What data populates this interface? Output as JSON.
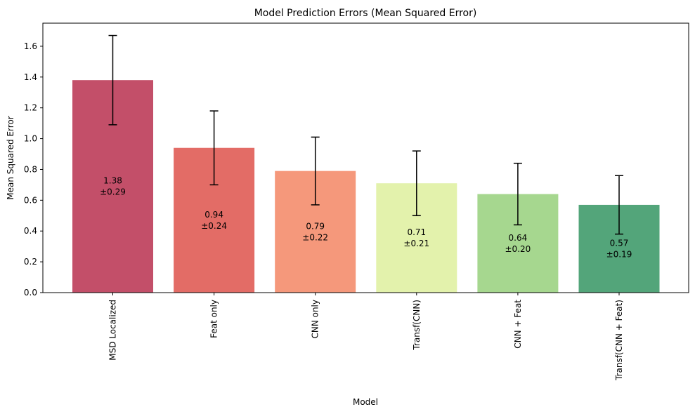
{
  "chart_data": {
    "type": "bar",
    "title": "Model Prediction Errors (Mean Squared Error)",
    "xlabel": "Model",
    "ylabel": "Mean Squared Error",
    "ylim": [
      0,
      1.75
    ],
    "yticks": [
      0.0,
      0.2,
      0.4,
      0.6,
      0.8,
      1.0,
      1.2,
      1.4,
      1.6
    ],
    "ytick_labels": [
      "0.0",
      "0.2",
      "0.4",
      "0.6",
      "0.8",
      "1.0",
      "1.2",
      "1.4",
      "1.6"
    ],
    "categories": [
      "MSD Localized",
      "Feat only",
      "CNN only",
      "Transf(CNN)",
      "CNN + Feat",
      "Transf(CNN + Feat)"
    ],
    "values": [
      1.38,
      0.94,
      0.79,
      0.71,
      0.64,
      0.57
    ],
    "errors": [
      0.29,
      0.24,
      0.22,
      0.21,
      0.2,
      0.19
    ],
    "value_labels": [
      "1.38",
      "0.94",
      "0.79",
      "0.71",
      "0.64",
      "0.57"
    ],
    "error_labels": [
      "±0.29",
      "±0.24",
      "±0.22",
      "±0.21",
      "±0.20",
      "±0.19"
    ],
    "colors": [
      "#c34f69",
      "#e36c66",
      "#f5987b",
      "#e3f2ac",
      "#a6d78f",
      "#53a57a"
    ],
    "grid": false,
    "legend": "none"
  }
}
